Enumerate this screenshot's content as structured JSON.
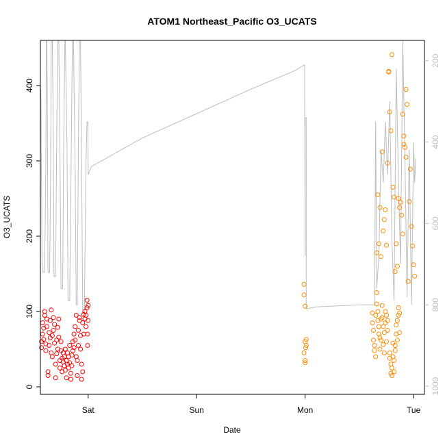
{
  "chart_data": {
    "type": "scatter",
    "title": "ATOM1 Northeast_Pacific O3_UCATS",
    "xlabel": "Date",
    "ylabel": "O3_UCATS",
    "x_ticks": [
      "Sat",
      "Sun",
      "Mon",
      "Tue"
    ],
    "x_tick_days": [
      1,
      2,
      3,
      4
    ],
    "xlim": [
      0.56,
      4.1
    ],
    "ylim": [
      -10,
      460
    ],
    "y_ticks": [
      0,
      100,
      200,
      300,
      400
    ],
    "y2_ticks": [
      200,
      400,
      600,
      800,
      1000
    ],
    "y2lim": [
      1020,
      150
    ],
    "grid": false,
    "colors": {
      "series1": "#ff0000",
      "series2": "#ff8c00",
      "pressure": "#bdbdbd",
      "axis": "#000000"
    },
    "series": [
      {
        "color": "#ff0000",
        "points": [
          [
            0.57,
            52
          ],
          [
            0.57,
            60
          ],
          [
            0.58,
            70
          ],
          [
            0.58,
            85
          ],
          [
            0.59,
            63
          ],
          [
            0.59,
            78
          ],
          [
            0.6,
            95
          ],
          [
            0.6,
            100
          ],
          [
            0.61,
            48
          ],
          [
            0.61,
            57
          ],
          [
            0.62,
            80
          ],
          [
            0.62,
            90
          ],
          [
            0.63,
            20
          ],
          [
            0.63,
            15
          ],
          [
            0.64,
            55
          ],
          [
            0.64,
            72
          ],
          [
            0.65,
            65
          ],
          [
            0.65,
            88
          ],
          [
            0.66,
            102
          ],
          [
            0.66,
            45
          ],
          [
            0.67,
            40
          ],
          [
            0.67,
            68
          ],
          [
            0.68,
            92
          ],
          [
            0.68,
            75
          ],
          [
            0.69,
            58
          ],
          [
            0.69,
            83
          ],
          [
            0.7,
            30
          ],
          [
            0.7,
            12
          ],
          [
            0.71,
            44
          ],
          [
            0.71,
            62
          ],
          [
            0.72,
            79
          ],
          [
            0.72,
            50
          ],
          [
            0.73,
            66
          ],
          [
            0.73,
            90
          ],
          [
            0.74,
            35
          ],
          [
            0.74,
            25
          ],
          [
            0.75,
            60
          ],
          [
            0.75,
            48
          ],
          [
            0.76,
            20
          ],
          [
            0.76,
            38
          ],
          [
            0.77,
            45
          ],
          [
            0.77,
            33
          ],
          [
            0.78,
            28
          ],
          [
            0.78,
            40
          ],
          [
            0.79,
            50
          ],
          [
            0.79,
            22
          ],
          [
            0.8,
            35
          ],
          [
            0.8,
            12
          ],
          [
            0.81,
            30
          ],
          [
            0.81,
            45
          ],
          [
            0.82,
            25
          ],
          [
            0.82,
            40
          ],
          [
            0.83,
            55
          ],
          [
            0.83,
            32
          ],
          [
            0.84,
            18
          ],
          [
            0.84,
            10
          ],
          [
            0.85,
            42
          ],
          [
            0.85,
            28
          ],
          [
            0.86,
            60
          ],
          [
            0.86,
            48
          ],
          [
            0.87,
            70
          ],
          [
            0.87,
            52
          ],
          [
            0.88,
            80
          ],
          [
            0.88,
            62
          ],
          [
            0.89,
            95
          ],
          [
            0.89,
            40
          ],
          [
            0.9,
            15
          ],
          [
            0.9,
            35
          ],
          [
            0.91,
            55
          ],
          [
            0.91,
            75
          ],
          [
            0.92,
            88
          ],
          [
            0.92,
            92
          ],
          [
            0.93,
            68
          ],
          [
            0.93,
            50
          ],
          [
            0.94,
            30
          ],
          [
            0.94,
            10
          ],
          [
            0.95,
            20
          ],
          [
            0.95,
            85
          ],
          [
            0.96,
            70
          ],
          [
            0.96,
            96
          ],
          [
            0.97,
            100
          ],
          [
            0.97,
            90
          ],
          [
            0.98,
            80
          ],
          [
            0.98,
            95
          ],
          [
            0.99,
            105
          ],
          [
            0.99,
            115
          ],
          [
            1.0,
            108
          ],
          [
            1.0,
            88
          ],
          [
            0.995,
            70
          ],
          [
            0.995,
            55
          ]
        ]
      },
      {
        "color": "#ff8c00",
        "points": [
          [
            2.99,
            136
          ],
          [
            2.99,
            122
          ],
          [
            3.0,
            107
          ],
          [
            3.0,
            60
          ],
          [
            3.005,
            52
          ],
          [
            3.0,
            35
          ],
          [
            3.0,
            32
          ],
          [
            3.01,
            63
          ],
          [
            3.01,
            55
          ],
          [
            2.99,
            45
          ],
          [
            3.62,
            98
          ],
          [
            3.62,
            85
          ],
          [
            3.63,
            75
          ],
          [
            3.63,
            62
          ],
          [
            3.64,
            55
          ],
          [
            3.64,
            48
          ],
          [
            3.65,
            40
          ],
          [
            3.65,
            95
          ],
          [
            3.66,
            125
          ],
          [
            3.66,
            110
          ],
          [
            3.67,
            100
          ],
          [
            3.67,
            88
          ],
          [
            3.68,
            70
          ],
          [
            3.68,
            80
          ],
          [
            3.69,
            65
          ],
          [
            3.69,
            50
          ],
          [
            3.7,
            62
          ],
          [
            3.7,
            90
          ],
          [
            3.71,
            108
          ],
          [
            3.71,
            92
          ],
          [
            3.72,
            80
          ],
          [
            3.72,
            56
          ],
          [
            3.73,
            45
          ],
          [
            3.73,
            72
          ],
          [
            3.74,
            100
          ],
          [
            3.74,
            85
          ],
          [
            3.75,
            95
          ],
          [
            3.75,
            60
          ],
          [
            3.76,
            88
          ],
          [
            3.76,
            75
          ],
          [
            3.78,
            45
          ],
          [
            3.78,
            38
          ],
          [
            3.79,
            30
          ],
          [
            3.79,
            18
          ],
          [
            3.8,
            25
          ],
          [
            3.8,
            15
          ],
          [
            3.81,
            58
          ],
          [
            3.81,
            40
          ],
          [
            3.82,
            35
          ],
          [
            3.82,
            20
          ],
          [
            3.83,
            55
          ],
          [
            3.83,
            48
          ],
          [
            3.84,
            70
          ],
          [
            3.84,
            82
          ],
          [
            3.85,
            88
          ],
          [
            3.85,
            62
          ],
          [
            3.86,
            95
          ],
          [
            3.86,
            105
          ],
          [
            3.87,
            98
          ],
          [
            3.87,
            72
          ],
          [
            3.66,
            178
          ],
          [
            3.67,
            255
          ],
          [
            3.68,
            190
          ],
          [
            3.69,
            238
          ],
          [
            3.7,
            173
          ],
          [
            3.71,
            312
          ],
          [
            3.72,
            207
          ],
          [
            3.73,
            222
          ],
          [
            3.74,
            235
          ],
          [
            3.75,
            188
          ],
          [
            3.76,
            297
          ],
          [
            3.77,
            418
          ],
          [
            3.78,
            365
          ],
          [
            3.79,
            340
          ],
          [
            3.8,
            441
          ],
          [
            3.81,
            265
          ],
          [
            3.82,
            252
          ],
          [
            3.83,
            153
          ],
          [
            3.84,
            190
          ],
          [
            3.85,
            160
          ],
          [
            3.86,
            250
          ],
          [
            3.87,
            238
          ],
          [
            3.88,
            245
          ],
          [
            3.89,
            228
          ],
          [
            3.9,
            203
          ],
          [
            3.91,
            333
          ],
          [
            3.92,
            318
          ],
          [
            3.93,
            395
          ],
          [
            3.94,
            375
          ],
          [
            3.95,
            140
          ],
          [
            3.96,
            246
          ],
          [
            3.97,
            289
          ],
          [
            3.98,
            213
          ],
          [
            3.99,
            187
          ],
          [
            4.0,
            162
          ],
          [
            4.01,
            147
          ],
          [
            3.77,
            419
          ],
          [
            3.9,
            362
          ],
          [
            3.93,
            305
          ],
          [
            3.91,
            322
          ]
        ]
      }
    ],
    "pressure_line": {
      "color": "#bdbdbd",
      "points": [
        [
          0.565,
          270
        ],
        [
          0.575,
          700
        ],
        [
          0.585,
          720
        ],
        [
          0.6,
          720
        ],
        [
          0.61,
          450
        ],
        [
          0.615,
          150
        ],
        [
          0.62,
          150
        ],
        [
          0.625,
          400
        ],
        [
          0.63,
          720
        ],
        [
          0.645,
          720
        ],
        [
          0.655,
          450
        ],
        [
          0.66,
          150
        ],
        [
          0.67,
          150
        ],
        [
          0.68,
          400
        ],
        [
          0.685,
          730
        ],
        [
          0.7,
          730
        ],
        [
          0.71,
          400
        ],
        [
          0.72,
          150
        ],
        [
          0.73,
          150
        ],
        [
          0.74,
          400
        ],
        [
          0.75,
          760
        ],
        [
          0.765,
          760
        ],
        [
          0.775,
          400
        ],
        [
          0.785,
          150
        ],
        [
          0.79,
          150
        ],
        [
          0.805,
          400
        ],
        [
          0.815,
          790
        ],
        [
          0.83,
          790
        ],
        [
          0.845,
          400
        ],
        [
          0.855,
          150
        ],
        [
          0.865,
          150
        ],
        [
          0.88,
          450
        ],
        [
          0.89,
          800
        ],
        [
          0.9,
          800
        ],
        [
          0.91,
          400
        ],
        [
          0.92,
          150
        ],
        [
          0.93,
          150
        ],
        [
          0.94,
          450
        ],
        [
          0.95,
          820
        ],
        [
          0.965,
          820
        ],
        [
          0.98,
          450
        ],
        [
          0.99,
          350
        ],
        [
          0.998,
          350
        ],
        [
          1.0,
          475
        ],
        [
          1.0,
          480
        ],
        [
          1.03,
          460
        ],
        [
          1.5,
          390
        ],
        [
          2.0,
          330
        ],
        [
          2.5,
          270
        ],
        [
          2.9,
          225
        ],
        [
          2.995,
          210
        ],
        [
          3.0,
          680
        ],
        [
          3.0,
          340
        ],
        [
          3.01,
          340
        ],
        [
          3.01,
          810
        ],
        [
          3.1,
          805
        ],
        [
          3.5,
          800
        ],
        [
          3.64,
          800
        ],
        [
          3.65,
          350
        ],
        [
          3.66,
          760
        ],
        [
          3.68,
          680
        ],
        [
          3.7,
          420
        ],
        [
          3.72,
          500
        ],
        [
          3.74,
          350
        ],
        [
          3.76,
          480
        ],
        [
          3.78,
          300
        ],
        [
          3.8,
          640
        ],
        [
          3.82,
          790
        ],
        [
          3.84,
          220
        ],
        [
          3.86,
          500
        ],
        [
          3.88,
          700
        ],
        [
          3.9,
          150
        ],
        [
          3.92,
          440
        ],
        [
          3.94,
          780
        ],
        [
          3.96,
          420
        ],
        [
          3.98,
          800
        ],
        [
          4.0,
          400
        ],
        [
          4.01,
          500
        ],
        [
          4.02,
          440
        ]
      ]
    }
  }
}
